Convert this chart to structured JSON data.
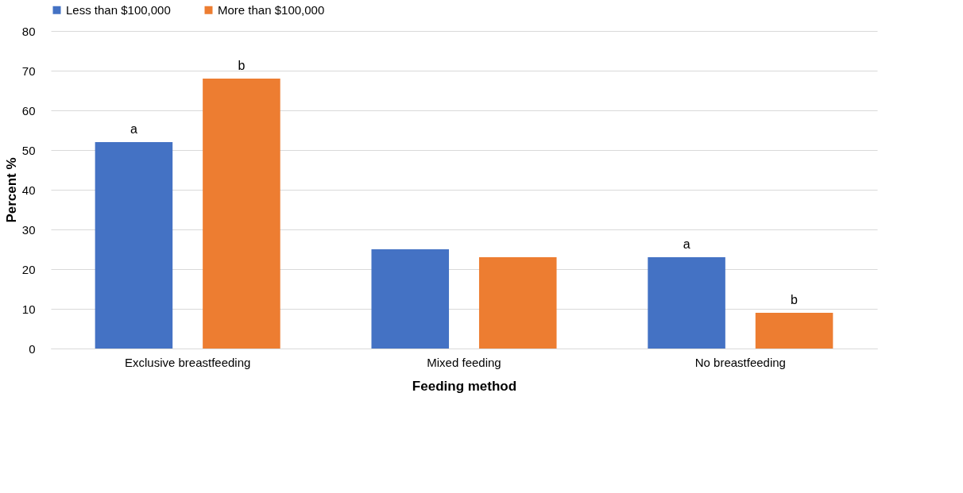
{
  "chart_data": {
    "type": "bar",
    "xlabel": "Feeding method",
    "ylabel": "Percent %",
    "categories": [
      "Exclusive breastfeeding",
      "Mixed feeding",
      "No breastfeeding"
    ],
    "series": [
      {
        "name": "Less than $100,000",
        "color": "#4472c4",
        "values": [
          52,
          25,
          23
        ],
        "value_labels": [
          "a",
          null,
          "a"
        ]
      },
      {
        "name": "More than $100,000",
        "color": "#ed7d31",
        "values": [
          68,
          23,
          9
        ],
        "value_labels": [
          "b",
          null,
          "b"
        ]
      }
    ],
    "ylim": [
      0,
      80
    ],
    "yticks": [
      0,
      10,
      20,
      30,
      40,
      50,
      60,
      70,
      80
    ],
    "grid": "y",
    "legend": "top"
  }
}
